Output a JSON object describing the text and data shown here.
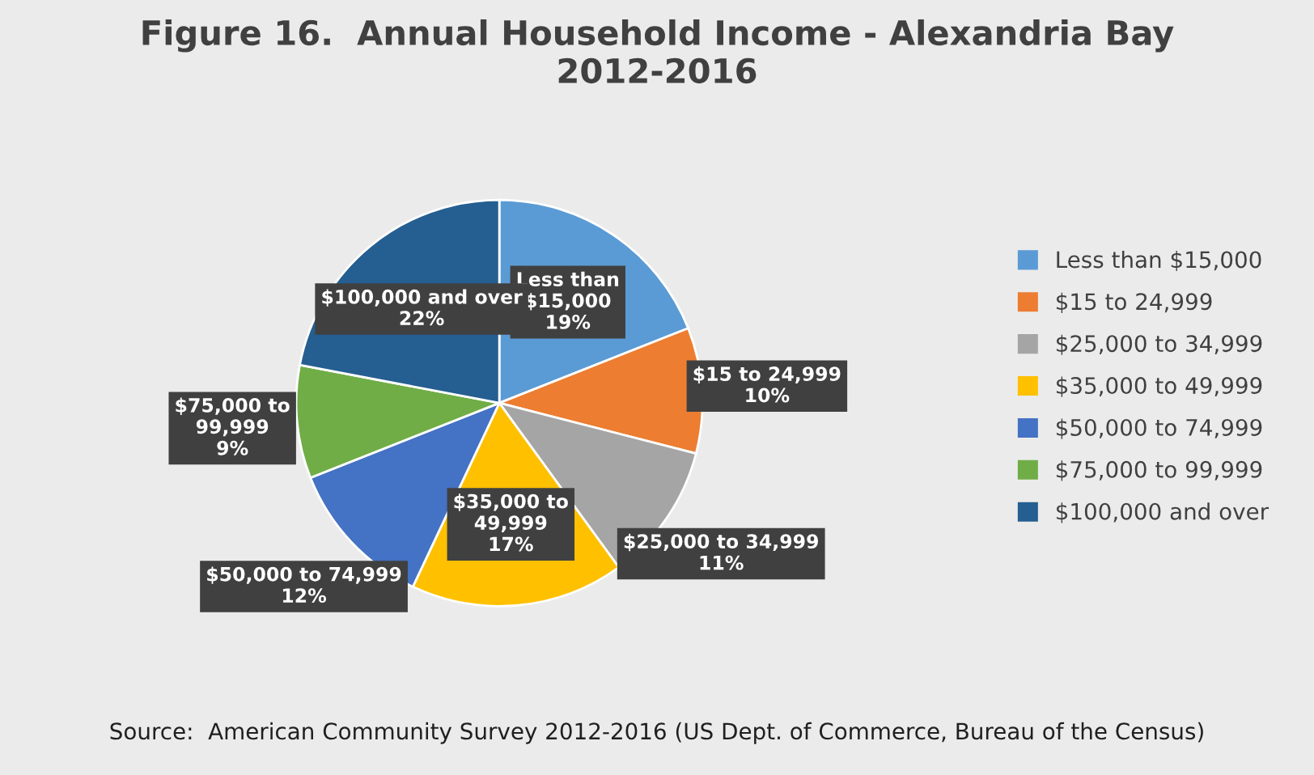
{
  "chart_data": {
    "type": "pie",
    "title": "Figure 16.  Annual Household Income - Alexandria Bay\n2012-2016",
    "categories": [
      "Less than $15,000",
      "$15 to 24,999",
      "$25,000 to 34,999",
      "$35,000 to 49,999",
      "$50,000 to 74,999",
      "$75,000 to 99,999",
      "$100,000 and over"
    ],
    "values": [
      19,
      10,
      11,
      17,
      12,
      9,
      22
    ],
    "colors": [
      "#5b9bd5",
      "#ed7d31",
      "#a5a5a5",
      "#ffc000",
      "#4472c4",
      "#70ad47",
      "#255e91"
    ],
    "value_labels": [
      "Less than\n$15,000\n19%",
      "$15 to 24,999\n10%",
      "$25,000 to 34,999\n11%",
      "$35,000 to\n49,999\n17%",
      "$50,000 to 74,999\n12%",
      "$75,000 to\n99,999\n9%",
      "$100,000 and over\n22%"
    ],
    "legend": "right",
    "annotations": [
      "Source:  American Community Survey 2012-2016 (US Dept. of Commerce, Bureau of the Census)"
    ]
  }
}
